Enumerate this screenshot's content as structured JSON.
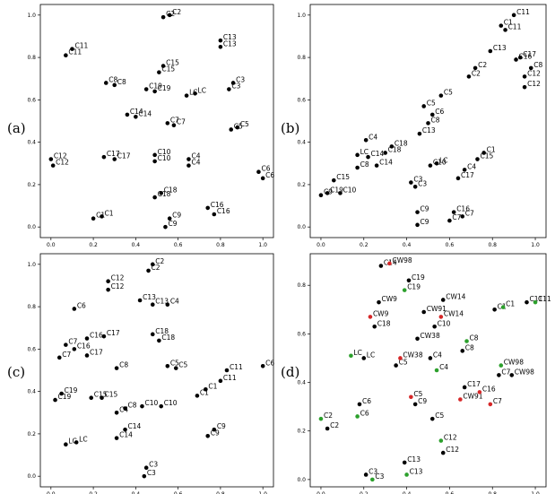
{
  "chart_data": [
    {
      "panel": "(a)",
      "type": "scatter",
      "xlim": [
        -0.05,
        1.05
      ],
      "ylim": [
        -0.05,
        1.05
      ],
      "xticks": [
        "0.0",
        "0.2",
        "0.4",
        "0.6",
        "0.8",
        "1.0"
      ],
      "yticks": [
        "0.0",
        "0.2",
        "0.4",
        "0.6",
        "0.8",
        "1.0"
      ],
      "series": [
        {
          "color": "#000000",
          "points": [
            {
              "label": "C2",
              "x": 0.53,
              "y": 0.99
            },
            {
              "label": "C2",
              "x": 0.56,
              "y": 1.0
            },
            {
              "label": "C11",
              "x": 0.1,
              "y": 0.84
            },
            {
              "label": "C11",
              "x": 0.07,
              "y": 0.81
            },
            {
              "label": "C13",
              "x": 0.8,
              "y": 0.88
            },
            {
              "label": "C13",
              "x": 0.8,
              "y": 0.85
            },
            {
              "label": "C15",
              "x": 0.53,
              "y": 0.76
            },
            {
              "label": "C15",
              "x": 0.51,
              "y": 0.73
            },
            {
              "label": "C8",
              "x": 0.26,
              "y": 0.68
            },
            {
              "label": "C8",
              "x": 0.3,
              "y": 0.67
            },
            {
              "label": "C19",
              "x": 0.45,
              "y": 0.65
            },
            {
              "label": "C19",
              "x": 0.49,
              "y": 0.64
            },
            {
              "label": "LC",
              "x": 0.64,
              "y": 0.62
            },
            {
              "label": "LC",
              "x": 0.68,
              "y": 0.63
            },
            {
              "label": "C3",
              "x": 0.86,
              "y": 0.68
            },
            {
              "label": "C3",
              "x": 0.84,
              "y": 0.65
            },
            {
              "label": "C14",
              "x": 0.36,
              "y": 0.53
            },
            {
              "label": "C14",
              "x": 0.4,
              "y": 0.52
            },
            {
              "label": "C7",
              "x": 0.55,
              "y": 0.49
            },
            {
              "label": "C7",
              "x": 0.58,
              "y": 0.48
            },
            {
              "label": "C5",
              "x": 0.85,
              "y": 0.46
            },
            {
              "label": "C5",
              "x": 0.88,
              "y": 0.47
            },
            {
              "label": "C12",
              "x": 0.0,
              "y": 0.32
            },
            {
              "label": "C12",
              "x": 0.01,
              "y": 0.29
            },
            {
              "label": "C17",
              "x": 0.25,
              "y": 0.33
            },
            {
              "label": "C17",
              "x": 0.3,
              "y": 0.32
            },
            {
              "label": "C10",
              "x": 0.49,
              "y": 0.34
            },
            {
              "label": "C10",
              "x": 0.49,
              "y": 0.31
            },
            {
              "label": "C4",
              "x": 0.65,
              "y": 0.32
            },
            {
              "label": "C4",
              "x": 0.65,
              "y": 0.29
            },
            {
              "label": "C6",
              "x": 0.98,
              "y": 0.26
            },
            {
              "label": "C6",
              "x": 1.0,
              "y": 0.23
            },
            {
              "label": "C18",
              "x": 0.52,
              "y": 0.16
            },
            {
              "label": "C18",
              "x": 0.49,
              "y": 0.14
            },
            {
              "label": "C16",
              "x": 0.74,
              "y": 0.09
            },
            {
              "label": "C16",
              "x": 0.77,
              "y": 0.06
            },
            {
              "label": "C1",
              "x": 0.2,
              "y": 0.04
            },
            {
              "label": "C1",
              "x": 0.24,
              "y": 0.05
            },
            {
              "label": "C9",
              "x": 0.56,
              "y": 0.04
            },
            {
              "label": "C9",
              "x": 0.54,
              "y": 0.0
            }
          ]
        }
      ]
    },
    {
      "panel": "(b)",
      "type": "scatter",
      "xlim": [
        -0.05,
        1.05
      ],
      "ylim": [
        -0.05,
        1.05
      ],
      "xticks": [
        "0.0",
        "0.2",
        "0.4",
        "0.6",
        "0.8",
        "1.0"
      ],
      "yticks": [
        "0.0",
        "0.2",
        "0.4",
        "0.6",
        "0.8",
        "1.0"
      ],
      "series": [
        {
          "color": "#000000",
          "points": [
            {
              "label": "C11",
              "x": 0.9,
              "y": 1.0
            },
            {
              "label": "C1",
              "x": 0.84,
              "y": 0.95
            },
            {
              "label": "C11",
              "x": 0.86,
              "y": 0.93
            },
            {
              "label": "C13",
              "x": 0.79,
              "y": 0.83
            },
            {
              "label": "C17",
              "x": 0.93,
              "y": 0.8
            },
            {
              "label": "C16",
              "x": 0.91,
              "y": 0.79
            },
            {
              "label": "C8",
              "x": 0.98,
              "y": 0.75
            },
            {
              "label": "C2",
              "x": 0.72,
              "y": 0.75
            },
            {
              "label": "C2",
              "x": 0.69,
              "y": 0.71
            },
            {
              "label": "C12",
              "x": 0.95,
              "y": 0.71
            },
            {
              "label": "C12",
              "x": 0.95,
              "y": 0.66
            },
            {
              "label": "C5",
              "x": 0.56,
              "y": 0.62
            },
            {
              "label": "C5",
              "x": 0.48,
              "y": 0.57
            },
            {
              "label": "C6",
              "x": 0.52,
              "y": 0.53
            },
            {
              "label": "C8",
              "x": 0.5,
              "y": 0.49
            },
            {
              "label": "C13",
              "x": 0.46,
              "y": 0.44
            },
            {
              "label": "C4",
              "x": 0.21,
              "y": 0.41
            },
            {
              "label": "C18",
              "x": 0.33,
              "y": 0.38
            },
            {
              "label": "LC",
              "x": 0.17,
              "y": 0.34
            },
            {
              "label": "C14",
              "x": 0.22,
              "y": 0.33
            },
            {
              "label": "C18",
              "x": 0.3,
              "y": 0.35
            },
            {
              "label": "C8",
              "x": 0.17,
              "y": 0.28
            },
            {
              "label": "C14",
              "x": 0.26,
              "y": 0.29
            },
            {
              "label": "C1",
              "x": 0.76,
              "y": 0.35
            },
            {
              "label": "C15",
              "x": 0.73,
              "y": 0.32
            },
            {
              "label": "LC",
              "x": 0.54,
              "y": 0.3
            },
            {
              "label": "C10",
              "x": 0.51,
              "y": 0.29
            },
            {
              "label": "C4",
              "x": 0.67,
              "y": 0.27
            },
            {
              "label": "C17",
              "x": 0.64,
              "y": 0.23
            },
            {
              "label": "C15",
              "x": 0.06,
              "y": 0.22
            },
            {
              "label": "C3",
              "x": 0.42,
              "y": 0.21
            },
            {
              "label": "C3",
              "x": 0.44,
              "y": 0.19
            },
            {
              "label": "C9",
              "x": 0.0,
              "y": 0.15
            },
            {
              "label": "C19",
              "x": 0.03,
              "y": 0.16
            },
            {
              "label": "C10",
              "x": 0.09,
              "y": 0.16
            },
            {
              "label": "C9",
              "x": 0.45,
              "y": 0.07
            },
            {
              "label": "C16",
              "x": 0.62,
              "y": 0.07
            },
            {
              "label": "C7",
              "x": 0.66,
              "y": 0.05
            },
            {
              "label": "C7",
              "x": 0.6,
              "y": 0.03
            },
            {
              "label": "C9",
              "x": 0.45,
              "y": 0.01
            }
          ]
        }
      ]
    },
    {
      "panel": "(c)",
      "type": "scatter",
      "xlim": [
        -0.05,
        1.05
      ],
      "ylim": [
        -0.05,
        1.05
      ],
      "xticks": [
        "0.0",
        "0.2",
        "0.4",
        "0.6",
        "0.8",
        "1.0"
      ],
      "yticks": [
        "0.0",
        "0.2",
        "0.4",
        "0.6",
        "0.8",
        "1.0"
      ],
      "series": [
        {
          "color": "#000000",
          "points": [
            {
              "label": "C2",
              "x": 0.48,
              "y": 1.0
            },
            {
              "label": "C2",
              "x": 0.46,
              "y": 0.97
            },
            {
              "label": "C12",
              "x": 0.27,
              "y": 0.92
            },
            {
              "label": "C12",
              "x": 0.27,
              "y": 0.88
            },
            {
              "label": "C13",
              "x": 0.42,
              "y": 0.83
            },
            {
              "label": "C13",
              "x": 0.48,
              "y": 0.81
            },
            {
              "label": "C4",
              "x": 0.55,
              "y": 0.81
            },
            {
              "label": "C6",
              "x": 0.11,
              "y": 0.79
            },
            {
              "label": "C16",
              "x": 0.17,
              "y": 0.65
            },
            {
              "label": "C17",
              "x": 0.25,
              "y": 0.66
            },
            {
              "label": "C18",
              "x": 0.48,
              "y": 0.67
            },
            {
              "label": "C18",
              "x": 0.51,
              "y": 0.64
            },
            {
              "label": "C7",
              "x": 0.07,
              "y": 0.62
            },
            {
              "label": "C16",
              "x": 0.11,
              "y": 0.6
            },
            {
              "label": "C7",
              "x": 0.04,
              "y": 0.56
            },
            {
              "label": "C17",
              "x": 0.17,
              "y": 0.57
            },
            {
              "label": "C8",
              "x": 0.31,
              "y": 0.51
            },
            {
              "label": "C5",
              "x": 0.55,
              "y": 0.52
            },
            {
              "label": "C5",
              "x": 0.59,
              "y": 0.51
            },
            {
              "label": "C6",
              "x": 1.0,
              "y": 0.52
            },
            {
              "label": "C11",
              "x": 0.83,
              "y": 0.5
            },
            {
              "label": "C11",
              "x": 0.8,
              "y": 0.45
            },
            {
              "label": "C1",
              "x": 0.73,
              "y": 0.41
            },
            {
              "label": "C1",
              "x": 0.69,
              "y": 0.38
            },
            {
              "label": "C19",
              "x": 0.05,
              "y": 0.39
            },
            {
              "label": "C19",
              "x": 0.02,
              "y": 0.36
            },
            {
              "label": "C15",
              "x": 0.19,
              "y": 0.37
            },
            {
              "label": "C15",
              "x": 0.24,
              "y": 0.37
            },
            {
              "label": "C8",
              "x": 0.35,
              "y": 0.32
            },
            {
              "label": "C10",
              "x": 0.43,
              "y": 0.33
            },
            {
              "label": "C10",
              "x": 0.52,
              "y": 0.33
            },
            {
              "label": "C4",
              "x": 0.31,
              "y": 0.3
            },
            {
              "label": "C9",
              "x": 0.77,
              "y": 0.22
            },
            {
              "label": "C9",
              "x": 0.74,
              "y": 0.19
            },
            {
              "label": "C14",
              "x": 0.35,
              "y": 0.22
            },
            {
              "label": "C14",
              "x": 0.31,
              "y": 0.18
            },
            {
              "label": "LC",
              "x": 0.12,
              "y": 0.16
            },
            {
              "label": "LC",
              "x": 0.07,
              "y": 0.15
            },
            {
              "label": "C3",
              "x": 0.45,
              "y": 0.04
            },
            {
              "label": "C3",
              "x": 0.44,
              "y": 0.0
            }
          ]
        }
      ]
    },
    {
      "panel": "(d)",
      "type": "scatter",
      "xlim": [
        -0.05,
        1.05
      ],
      "ylim": [
        -0.03,
        0.93
      ],
      "xticks": [
        "0.0",
        "0.2",
        "0.4",
        "0.6",
        "0.8",
        "1.0"
      ],
      "yticks": [
        "0.0",
        "0.2",
        "0.4",
        "0.6",
        "0.8"
      ],
      "series": [
        {
          "color": "#000000",
          "points": [
            {
              "label": "C14",
              "x": 0.28,
              "y": 0.88
            },
            {
              "label": "C19",
              "x": 0.41,
              "y": 0.82
            },
            {
              "label": "CW9",
              "x": 0.27,
              "y": 0.73
            },
            {
              "label": "CW14",
              "x": 0.57,
              "y": 0.74
            },
            {
              "label": "C1",
              "x": 0.81,
              "y": 0.7
            },
            {
              "label": "C11",
              "x": 0.96,
              "y": 0.73
            },
            {
              "label": "CW91",
              "x": 0.48,
              "y": 0.69
            },
            {
              "label": "C10",
              "x": 0.53,
              "y": 0.63
            },
            {
              "label": "C18",
              "x": 0.25,
              "y": 0.63
            },
            {
              "label": "CW38",
              "x": 0.45,
              "y": 0.58
            },
            {
              "label": "C8",
              "x": 0.66,
              "y": 0.53
            },
            {
              "label": "LC",
              "x": 0.2,
              "y": 0.5
            },
            {
              "label": "C4",
              "x": 0.51,
              "y": 0.5
            },
            {
              "label": "C5",
              "x": 0.35,
              "y": 0.47
            },
            {
              "label": "C7",
              "x": 0.83,
              "y": 0.43
            },
            {
              "label": "CW98",
              "x": 0.89,
              "y": 0.43
            },
            {
              "label": "C17",
              "x": 0.67,
              "y": 0.38
            },
            {
              "label": "C9",
              "x": 0.44,
              "y": 0.31
            },
            {
              "label": "C6",
              "x": 0.18,
              "y": 0.31
            },
            {
              "label": "C2",
              "x": 0.03,
              "y": 0.21
            },
            {
              "label": "C5",
              "x": 0.52,
              "y": 0.25
            },
            {
              "label": "C12",
              "x": 0.57,
              "y": 0.11
            },
            {
              "label": "C13",
              "x": 0.39,
              "y": 0.07
            },
            {
              "label": "C3",
              "x": 0.21,
              "y": 0.02
            }
          ]
        },
        {
          "color": "#2ca02c",
          "points": [
            {
              "label": "C1",
              "x": 0.85,
              "y": 0.71
            },
            {
              "label": "C11",
              "x": 1.0,
              "y": 0.73
            },
            {
              "label": "C19",
              "x": 0.39,
              "y": 0.78
            },
            {
              "label": "C8",
              "x": 0.68,
              "y": 0.57
            },
            {
              "label": "LC",
              "x": 0.14,
              "y": 0.51
            },
            {
              "label": "C4",
              "x": 0.54,
              "y": 0.45
            },
            {
              "label": "CW98",
              "x": 0.84,
              "y": 0.47
            },
            {
              "label": "C2",
              "x": 0.0,
              "y": 0.25
            },
            {
              "label": "C6",
              "x": 0.17,
              "y": 0.26
            },
            {
              "label": "C12",
              "x": 0.56,
              "y": 0.16
            },
            {
              "label": "C13",
              "x": 0.4,
              "y": 0.02
            },
            {
              "label": "C3",
              "x": 0.24,
              "y": 0.0
            }
          ]
        },
        {
          "color": "#d62728",
          "points": [
            {
              "label": "CW98",
              "x": 0.32,
              "y": 0.89
            },
            {
              "label": "CW9",
              "x": 0.23,
              "y": 0.67
            },
            {
              "label": "CW14",
              "x": 0.56,
              "y": 0.67
            },
            {
              "label": "CW38",
              "x": 0.37,
              "y": 0.5
            },
            {
              "label": "C5",
              "x": 0.42,
              "y": 0.34
            },
            {
              "label": "CW91",
              "x": 0.65,
              "y": 0.33
            },
            {
              "label": "C16",
              "x": 0.74,
              "y": 0.36
            },
            {
              "label": "C7",
              "x": 0.79,
              "y": 0.31
            }
          ]
        }
      ]
    }
  ]
}
